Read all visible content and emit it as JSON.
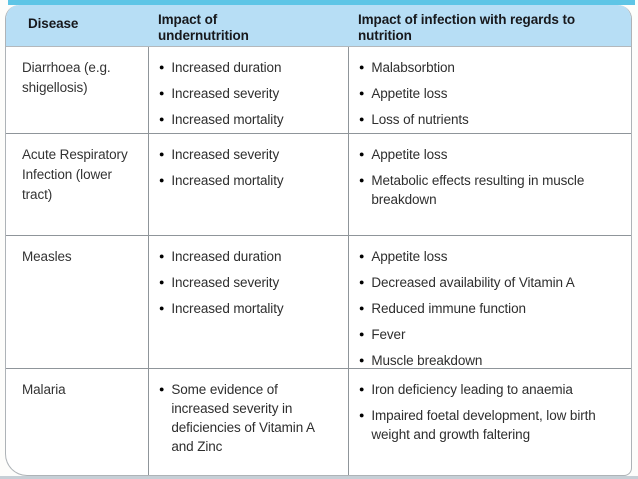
{
  "glyphs": {
    "bullet": "●"
  },
  "colors": {
    "top_strip": "#5ec5e6",
    "header_bg": "#b7def5",
    "table_border": "#8f959a",
    "bottom_strip": "#c6cfd6",
    "text": "#2b2b2b"
  },
  "table": {
    "headers": {
      "disease": "Disease",
      "undernutrition": "Impact of undernutrition",
      "infection": "Impact of infection with regards to nutrition"
    },
    "rows": [
      {
        "disease": "Diarrhoea (e.g. shigellosis)",
        "undernutrition": [
          "Increased duration",
          "Increased severity",
          "Increased mortality"
        ],
        "infection": [
          "Malabsorbtion",
          "Appetite loss",
          "Loss of nutrients"
        ]
      },
      {
        "disease": "Acute Respiratory Infection (lower tract)",
        "undernutrition": [
          "Increased severity",
          "Increased mortality"
        ],
        "infection": [
          "Appetite loss",
          "Metabolic effects resulting in muscle breakdown"
        ]
      },
      {
        "disease": "Measles",
        "undernutrition": [
          "Increased duration",
          "Increased severity",
          "Increased mortality"
        ],
        "infection": [
          "Appetite loss",
          "Decreased availability of Vitamin A",
          "Reduced immune function",
          "Fever",
          "Muscle breakdown"
        ]
      },
      {
        "disease": "Malaria",
        "undernutrition": [
          "Some evidence of increased severity in deficiencies of Vitamin A and Zinc"
        ],
        "infection": [
          "Iron deficiency leading to anaemia",
          "Impaired foetal development, low birth weight and growth faltering"
        ]
      }
    ]
  }
}
